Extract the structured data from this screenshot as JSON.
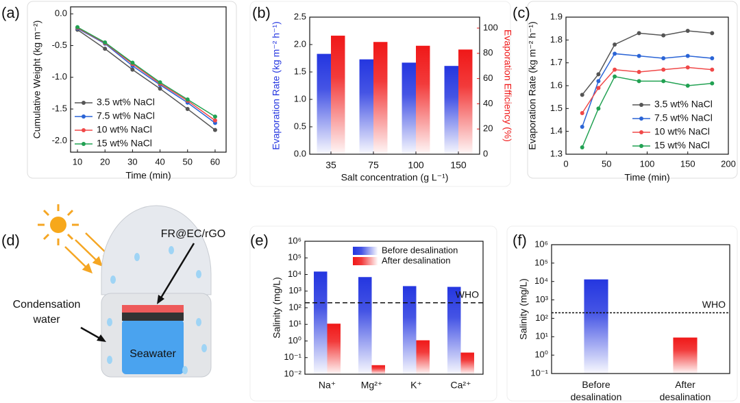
{
  "chart_data": [
    {
      "type": "line",
      "panel": "(a)",
      "xlabel": "Time (min)",
      "ylabel": "Cumulative Weight (kg m⁻²)",
      "x": [
        10,
        20,
        30,
        40,
        50,
        60
      ],
      "xlim": [
        7.5,
        64
      ],
      "xticks": [
        10,
        20,
        30,
        40,
        50,
        60
      ],
      "ylim": [
        -2.18,
        0.11
      ],
      "yticks": [
        {
          "value": -2,
          "label": "-2.0"
        },
        -1.5,
        {
          "value": -1,
          "label": "-1.0"
        },
        -0.5,
        {
          "value": 0,
          "label": "0.0"
        }
      ],
      "legend": "lower left",
      "series": [
        {
          "name": "3.5 wt% NaCl",
          "color": "#555555",
          "values": [
            -0.25,
            -0.55,
            -0.88,
            -1.18,
            -1.5,
            -1.83
          ]
        },
        {
          "name": "7.5 wt% NaCl",
          "color": "#2a64d6",
          "values": [
            -0.23,
            -0.47,
            -0.82,
            -1.12,
            -1.4,
            -1.72
          ]
        },
        {
          "name": "10 wt% NaCl",
          "color": "#f04848",
          "values": [
            -0.22,
            -0.46,
            -0.79,
            -1.1,
            -1.37,
            -1.68
          ]
        },
        {
          "name": "15 wt% NaCl",
          "color": "#21a152",
          "values": [
            -0.21,
            -0.45,
            -0.77,
            -1.08,
            -1.35,
            -1.62
          ]
        }
      ]
    },
    {
      "type": "bar",
      "panel": "(b)",
      "xlabel": "Salt concentration (g L⁻¹)",
      "categories": [
        "35",
        "75",
        "100",
        "150"
      ],
      "ylabel": "Evaporation Rate (kg m⁻² h⁻¹)",
      "ylim": [
        0,
        2.5
      ],
      "yticks": [
        {
          "value": 0,
          "label": "0.0"
        },
        0.5,
        {
          "value": 1,
          "label": "1.0"
        },
        1.5,
        {
          "value": 2,
          "label": "2.0"
        },
        2.5
      ],
      "y2label": "Evaporation Efficiency (%)",
      "y2lim": [
        0,
        108.7
      ],
      "y2ticks": [
        0,
        20,
        40,
        60,
        80,
        100
      ],
      "series": [
        {
          "name": "Evaporation Rate",
          "color": "#2436e0",
          "values": [
            1.83,
            1.73,
            1.67,
            1.61
          ]
        },
        {
          "name": "Evaporation Efficiency",
          "color": "#f01818",
          "axis": "y2",
          "values": [
            94,
            89,
            86,
            83
          ]
        }
      ]
    },
    {
      "type": "line",
      "panel": "(c)",
      "xlabel": "Time (min)",
      "ylabel": "Evaporation Rate (kg m⁻² h⁻¹)",
      "x": [
        20,
        40,
        60,
        90,
        120,
        150,
        180
      ],
      "xlim": [
        0,
        200
      ],
      "xticks": [
        0,
        50,
        100,
        150,
        200
      ],
      "ylim": [
        1.3,
        1.9
      ],
      "yticks": [
        1.3,
        1.4,
        1.5,
        1.6,
        1.7,
        1.8,
        1.9
      ],
      "legend": "lower right",
      "series": [
        {
          "name": "3.5 wt% NaCl",
          "color": "#555555",
          "values": [
            1.56,
            1.65,
            1.78,
            1.83,
            1.82,
            1.84,
            1.83
          ]
        },
        {
          "name": "7.5 wt% NaCl",
          "color": "#2a64d6",
          "values": [
            1.42,
            1.62,
            1.74,
            1.73,
            1.72,
            1.73,
            1.72
          ]
        },
        {
          "name": "10 wt% NaCl",
          "color": "#f04848",
          "values": [
            1.48,
            1.59,
            1.67,
            1.66,
            1.67,
            1.68,
            1.67
          ]
        },
        {
          "name": "15 wt% NaCl",
          "color": "#21a152",
          "values": [
            1.33,
            1.5,
            1.64,
            1.62,
            1.62,
            1.6,
            1.61
          ]
        }
      ]
    },
    {
      "type": "bar",
      "panel": "(e)",
      "ylabel": "Salinity (mg/L)",
      "y_scale": "log",
      "categories": [
        "Na⁺",
        "Mg²⁺",
        "K⁺",
        "Ca²⁺"
      ],
      "ylim": [
        0.01,
        1000000
      ],
      "yticks": [
        {
          "value": 0.01,
          "label": "10⁻²"
        },
        {
          "value": 0.1,
          "label": "10⁻¹"
        },
        {
          "value": 1,
          "label": "10⁰"
        },
        {
          "value": 10,
          "label": "10¹"
        },
        {
          "value": 100,
          "label": "10²"
        },
        {
          "value": 1000,
          "label": "10³"
        },
        {
          "value": 10000,
          "label": "10⁴"
        },
        {
          "value": 100000,
          "label": "10⁵"
        },
        {
          "value": 1000000,
          "label": "10⁶"
        }
      ],
      "legend": "upper right",
      "reference_line": {
        "value": 200,
        "label": "WHO"
      },
      "series": [
        {
          "name": "Before desalination",
          "color": "#2436e0",
          "values": [
            15000,
            7000,
            2000,
            1800
          ]
        },
        {
          "name": "After desalination",
          "color": "#f01818",
          "values": [
            11,
            0.035,
            1.1,
            0.2
          ]
        }
      ]
    },
    {
      "type": "bar",
      "panel": "(f)",
      "ylabel": "Salinity (mg/L)",
      "y_scale": "log",
      "categories": [
        "Before desalination",
        "After desalination"
      ],
      "ylim": [
        0.1,
        1000000
      ],
      "yticks": [
        {
          "value": 0.1,
          "label": "10⁻¹"
        },
        {
          "value": 1,
          "label": "10⁰"
        },
        {
          "value": 10,
          "label": "10¹"
        },
        {
          "value": 100,
          "label": "10²"
        },
        {
          "value": 1000,
          "label": "10³"
        },
        {
          "value": 10000,
          "label": "10⁴"
        },
        {
          "value": 100000,
          "label": "10⁵"
        },
        {
          "value": 1000000,
          "label": "10⁶"
        }
      ],
      "reference_line": {
        "value": 200,
        "label": "WHO"
      },
      "values": [
        13000,
        9
      ],
      "colors": [
        "#2436e0",
        "#f01818"
      ]
    }
  ],
  "diagram": {
    "panel": "(d)",
    "material": "FR@EC/rGO",
    "condensation": [
      "Condensation",
      "water"
    ],
    "seawater": "Seawater"
  }
}
